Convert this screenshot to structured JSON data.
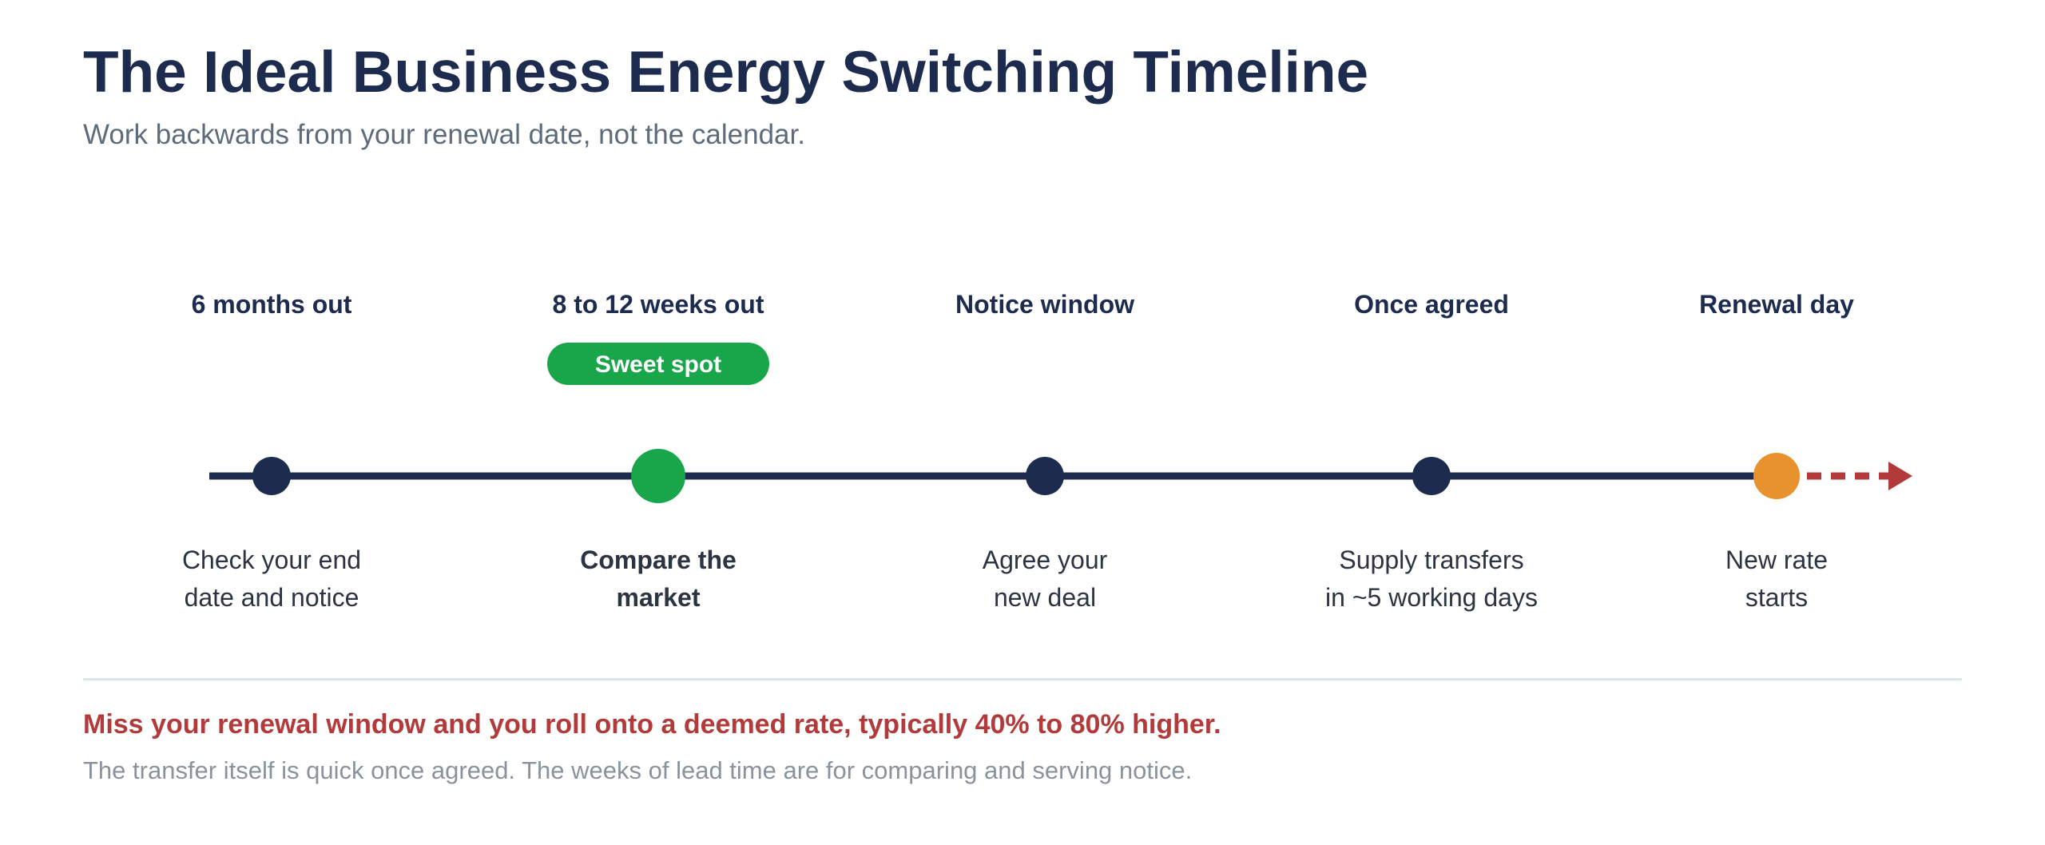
{
  "header": {
    "title": "The Ideal Business Energy Switching Timeline",
    "subtitle": "Work backwards from your renewal date, not the calendar."
  },
  "stages": [
    {
      "label": "6 months out",
      "desc_line1": "Check your end",
      "desc_line2": "date and notice",
      "emphasis": false,
      "color": "#1c2b4e"
    },
    {
      "label": "8 to 12 weeks out",
      "badge": "Sweet spot",
      "desc_line1": "Compare the",
      "desc_line2": "market",
      "emphasis": true,
      "color": "#19a64a"
    },
    {
      "label": "Notice window",
      "desc_line1": "Agree your",
      "desc_line2": "new deal",
      "emphasis": false,
      "color": "#1c2b4e"
    },
    {
      "label": "Once agreed",
      "desc_line1": "Supply transfers",
      "desc_line2": "in ~5 working days",
      "emphasis": false,
      "color": "#1c2b4e"
    },
    {
      "label": "Renewal day",
      "desc_line1": "New rate",
      "desc_line2": "starts",
      "emphasis": false,
      "color": "#e8922e"
    }
  ],
  "colors": {
    "line": "#1c2b4e",
    "badge": "#19a64a",
    "arrow": "#b23a3a"
  },
  "footer": {
    "warning": "Miss your renewal window and you roll onto a deemed rate, typically 40% to 80% higher.",
    "note": "The transfer itself is quick once agreed. The weeks of lead time are for comparing and serving notice."
  }
}
